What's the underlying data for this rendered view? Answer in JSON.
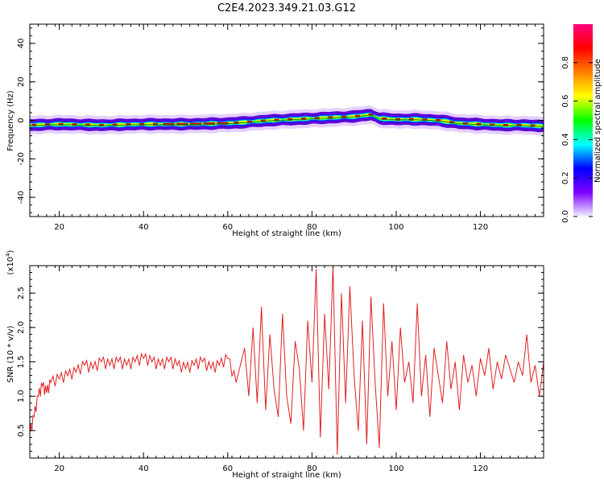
{
  "title": "C2E4.2023.349.21.03.G12",
  "colors": {
    "spectrum_line": "#008000",
    "snr_line": "#e02020",
    "band_low": "#5b00d8",
    "band_mid": "#00e0ff",
    "band_high": "#e00000"
  },
  "chart_data": [
    {
      "type": "heatmap",
      "name": "spectrogram",
      "xlabel": "Height of straight line (km)",
      "ylabel": "Frequency (Hz)",
      "xlim": [
        13,
        135
      ],
      "ylim": [
        -50,
        50
      ],
      "xticks": [
        20,
        40,
        60,
        80,
        100,
        120
      ],
      "yticks": [
        40,
        20,
        0,
        -20,
        -40
      ],
      "colorbar": {
        "label": "Normalized spectral amplitude",
        "range": [
          0,
          1
        ],
        "ticks": [
          "0.0",
          "0.2",
          "0.4",
          "0.6",
          "0.8"
        ],
        "colors": [
          "#f0f0ff",
          "#8000ff",
          "#0000ff",
          "#00ffff",
          "#00ff00",
          "#ffff00",
          "#ff8000",
          "#ff0000",
          "#ff0080"
        ]
      },
      "center_freq": {
        "x": [
          13,
          20,
          30,
          40,
          50,
          60,
          64,
          70,
          75,
          80,
          85,
          90,
          94,
          96,
          100,
          105,
          110,
          115,
          120,
          125,
          130,
          135
        ],
        "y": [
          -2.5,
          -2,
          -2.5,
          -2,
          -2,
          -1.5,
          -1,
          0,
          0.5,
          1,
          1.5,
          2,
          3,
          1,
          0.5,
          0.5,
          0,
          -1.5,
          -2,
          -2.5,
          -2.5,
          -3
        ]
      },
      "bandwidth_hz": [
        1.5,
        3,
        6
      ]
    },
    {
      "type": "line",
      "name": "snr",
      "xlabel": "Height of straight line (km)",
      "ylabel": "SNR (10 * v/v)",
      "multiplier_label": "(x10",
      "multiplier_exp": "4",
      "xlim": [
        13,
        135
      ],
      "ylim": [
        0.1,
        2.9
      ],
      "xticks": [
        20,
        40,
        60,
        80,
        100,
        120
      ],
      "yticks": [
        0.5,
        1.0,
        1.5,
        2.0,
        2.5
      ],
      "ytick_labels": [
        "0.5",
        "1.0",
        "1.5",
        "2.0",
        "2.5"
      ],
      "x": [
        13,
        14,
        15,
        16,
        17,
        18,
        20,
        22,
        24,
        26,
        28,
        30,
        32,
        34,
        36,
        38,
        40,
        42,
        44,
        46,
        48,
        50,
        52,
        54,
        56,
        58,
        60,
        62,
        64,
        65,
        66,
        67,
        68,
        69,
        70,
        71,
        72,
        73,
        74,
        75,
        76,
        77,
        78,
        79,
        80,
        81,
        82,
        83,
        84,
        85,
        86,
        87,
        88,
        89,
        90,
        91,
        92,
        93,
        94,
        95,
        96,
        97,
        98,
        99,
        100,
        101,
        102,
        103,
        104,
        105,
        106,
        107,
        108,
        109,
        110,
        111,
        112,
        113,
        114,
        115,
        116,
        117,
        118,
        119,
        120,
        121,
        122,
        123,
        124,
        125,
        126,
        127,
        128,
        129,
        130,
        131,
        132,
        133,
        134,
        135
      ],
      "values": [
        0.45,
        0.7,
        1.0,
        1.15,
        1.05,
        1.2,
        1.25,
        1.3,
        1.35,
        1.45,
        1.4,
        1.5,
        1.45,
        1.5,
        1.45,
        1.5,
        1.55,
        1.5,
        1.45,
        1.5,
        1.45,
        1.4,
        1.45,
        1.5,
        1.4,
        1.45,
        1.55,
        1.2,
        1.7,
        1.0,
        2.0,
        0.9,
        2.3,
        0.8,
        1.9,
        1.1,
        0.7,
        2.2,
        1.0,
        0.6,
        1.8,
        1.4,
        0.5,
        2.1,
        1.2,
        2.85,
        0.4,
        2.2,
        1.1,
        2.9,
        0.15,
        2.5,
        0.9,
        2.6,
        1.3,
        0.5,
        2.1,
        0.3,
        2.45,
        1.2,
        0.25,
        2.35,
        1.0,
        1.8,
        0.8,
        2.0,
        1.2,
        1.5,
        0.9,
        2.35,
        1.0,
        1.6,
        0.7,
        1.7,
        1.3,
        0.9,
        1.8,
        1.1,
        1.5,
        0.8,
        1.6,
        1.2,
        1.45,
        1.0,
        1.55,
        1.3,
        1.7,
        1.1,
        1.5,
        1.25,
        1.6,
        1.4,
        1.2,
        1.5,
        1.3,
        1.9,
        1.2,
        1.45,
        1.0,
        1.5
      ]
    }
  ]
}
